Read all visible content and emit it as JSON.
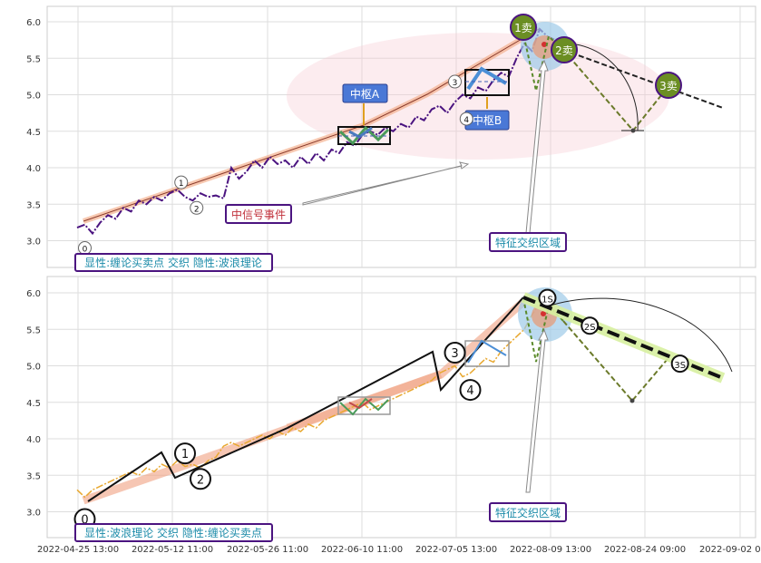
{
  "chart_data": [
    {
      "type": "line",
      "ylim": [
        2.6,
        6.2
      ],
      "y_ticks": [
        "6.0",
        "5.5",
        "5.0",
        "4.5",
        "4.0",
        "3.5",
        "3.0"
      ],
      "grid": true,
      "series": [
        {
          "values": [
            [
              0,
              3.18
            ],
            [
              1,
              3.22
            ],
            [
              2,
              3.1
            ],
            [
              3,
              3.25
            ],
            [
              4,
              3.35
            ],
            [
              5,
              3.3
            ],
            [
              6,
              3.45
            ],
            [
              7,
              3.4
            ],
            [
              8,
              3.55
            ],
            [
              9,
              3.5
            ],
            [
              10,
              3.6
            ],
            [
              11,
              3.55
            ],
            [
              12,
              3.65
            ],
            [
              13,
              3.7
            ],
            [
              14,
              3.6
            ],
            [
              15,
              3.55
            ],
            [
              16,
              3.65
            ],
            [
              17,
              3.6
            ],
            [
              18,
              3.62
            ],
            [
              19,
              3.58
            ],
            [
              20,
              4.0
            ],
            [
              21,
              3.85
            ],
            [
              22,
              3.95
            ],
            [
              23,
              4.1
            ],
            [
              24,
              4.0
            ],
            [
              25,
              4.15
            ],
            [
              26,
              4.05
            ],
            [
              27,
              4.1
            ],
            [
              28,
              4.0
            ],
            [
              29,
              4.15
            ],
            [
              30,
              4.05
            ],
            [
              31,
              4.2
            ],
            [
              32,
              4.1
            ],
            [
              33,
              4.25
            ],
            [
              34,
              4.2
            ],
            [
              35,
              4.35
            ],
            [
              36,
              4.3
            ],
            [
              37,
              4.45
            ],
            [
              38,
              4.5
            ],
            [
              39,
              4.45
            ],
            [
              40,
              4.55
            ],
            [
              41,
              4.5
            ],
            [
              42,
              4.6
            ],
            [
              43,
              4.55
            ],
            [
              44,
              4.7
            ],
            [
              45,
              4.65
            ],
            [
              46,
              4.8
            ],
            [
              47,
              4.85
            ],
            [
              48,
              4.75
            ],
            [
              49,
              4.9
            ],
            [
              50,
              5.0
            ],
            [
              51,
              4.95
            ],
            [
              52,
              5.1
            ],
            [
              53,
              5.05
            ],
            [
              54,
              5.2
            ],
            [
              55,
              5.3
            ],
            [
              56,
              5.25
            ],
            [
              57,
              5.5
            ],
            [
              58,
              5.7
            ],
            [
              59,
              5.6
            ],
            [
              60,
              5.9
            ],
            [
              61,
              5.8
            ],
            [
              62,
              5.75
            ],
            [
              63,
              5.6
            ]
          ]
        },
        {
          "values": [
            [
              1,
              3.1
            ],
            [
              14,
              3.7
            ],
            [
              16,
              3.6
            ],
            [
              49,
              5.0
            ],
            [
              51,
              4.8
            ],
            [
              61,
              5.95
            ]
          ]
        }
      ],
      "zhongshu": [
        {
          "label": "中枢A",
          "x": [
            37,
            45
          ],
          "y": [
            4.35,
            4.52
          ]
        },
        {
          "label": "中枢B",
          "x": [
            54,
            61
          ],
          "y": [
            5.0,
            5.3
          ]
        }
      ],
      "wave_points": [
        {
          "label": "0",
          "x": 1,
          "y": 2.9
        },
        {
          "label": "1",
          "x": 13.5,
          "y": 3.8
        },
        {
          "label": "2",
          "x": 15.5,
          "y": 3.45
        },
        {
          "label": "3",
          "x": 49,
          "y": 5.18
        },
        {
          "label": "4",
          "x": 50.5,
          "y": 4.67
        }
      ],
      "sell_points": [
        {
          "label": "1卖",
          "x": 60.5,
          "y": 5.92
        },
        {
          "label": "2卖",
          "x": 64.8,
          "y": 5.62
        },
        {
          "label": "3卖",
          "x": 77.5,
          "y": 5.12
        }
      ],
      "annotations": [
        {
          "text": "中信号事件",
          "x": 28,
          "y": 3.35
        },
        {
          "text": "特征交织区域",
          "x": 61,
          "y": 3.0
        },
        {
          "text": "显性:缠论买卖点 交织 隐性:波浪理论",
          "x": 4,
          "y": 2.65
        }
      ]
    },
    {
      "type": "line",
      "ylim": [
        2.6,
        6.2
      ],
      "y_ticks": [
        "6.0",
        "5.5",
        "5.0",
        "4.5",
        "4.0",
        "3.5",
        "3.0"
      ],
      "x_tick_labels": [
        "2022-04-25 13:00",
        "2022-05-12 11:00",
        "2022-05-26 11:00",
        "2022-06-10 11:00",
        "2022-07-05 13:00",
        "2022-08-09 13:00",
        "2022-08-24 09:00",
        "2022-09-02 09:00"
      ],
      "grid": true,
      "series": [
        {
          "values": [
            [
              0,
              3.3
            ],
            [
              1,
              3.2
            ],
            [
              2,
              3.3
            ],
            [
              3,
              3.35
            ],
            [
              4,
              3.4
            ],
            [
              5,
              3.45
            ],
            [
              6,
              3.5
            ],
            [
              7,
              3.55
            ],
            [
              8,
              3.5
            ],
            [
              9,
              3.6
            ],
            [
              10,
              3.55
            ],
            [
              11,
              3.65
            ],
            [
              12,
              3.6
            ],
            [
              13,
              3.7
            ],
            [
              14,
              3.62
            ],
            [
              15,
              3.65
            ],
            [
              16,
              3.6
            ],
            [
              17,
              3.7
            ],
            [
              18,
              3.75
            ],
            [
              19,
              3.9
            ],
            [
              20,
              3.95
            ],
            [
              21,
              3.9
            ],
            [
              22,
              3.95
            ],
            [
              23,
              4.0
            ],
            [
              24,
              4.05
            ],
            [
              25,
              4.0
            ],
            [
              26,
              4.1
            ],
            [
              27,
              4.05
            ],
            [
              28,
              4.15
            ],
            [
              29,
              4.1
            ],
            [
              30,
              4.2
            ],
            [
              31,
              4.15
            ],
            [
              32,
              4.25
            ],
            [
              33,
              4.3
            ],
            [
              34,
              4.35
            ],
            [
              35,
              4.4
            ],
            [
              36,
              4.45
            ],
            [
              37,
              4.5
            ],
            [
              38,
              4.4
            ],
            [
              39,
              4.45
            ],
            [
              40,
              4.5
            ],
            [
              41,
              4.55
            ],
            [
              42,
              4.6
            ],
            [
              43,
              4.65
            ],
            [
              44,
              4.7
            ],
            [
              45,
              4.75
            ],
            [
              46,
              4.8
            ],
            [
              47,
              4.9
            ],
            [
              48,
              4.95
            ],
            [
              49,
              5.0
            ],
            [
              50,
              4.85
            ],
            [
              51,
              4.9
            ],
            [
              52,
              5.0
            ],
            [
              53,
              5.1
            ],
            [
              54,
              5.05
            ],
            [
              55,
              5.2
            ],
            [
              56,
              5.3
            ],
            [
              57,
              5.4
            ],
            [
              58,
              5.5
            ],
            [
              59,
              5.7
            ],
            [
              60,
              5.85
            ],
            [
              61,
              5.95
            ]
          ]
        },
        {
          "values": [
            [
              1,
              3.1
            ],
            [
              14,
              3.7
            ],
            [
              16,
              3.55
            ],
            [
              49,
              5.0
            ],
            [
              51,
              4.8
            ],
            [
              61,
              5.95
            ]
          ]
        },
        {
          "values": [
            [
              61,
              5.92
            ],
            [
              67,
              5.5
            ],
            [
              77,
              5.03
            ],
            [
              85,
              4.78
            ]
          ]
        }
      ],
      "wave_points": [
        {
          "label": "0",
          "x": 1,
          "y": 2.9
        },
        {
          "label": "1",
          "x": 14,
          "y": 3.8
        },
        {
          "label": "2",
          "x": 16,
          "y": 3.45
        },
        {
          "label": "3",
          "x": 49,
          "y": 5.18
        },
        {
          "label": "4",
          "x": 51,
          "y": 4.67
        },
        {
          "label": "1S",
          "x": 61,
          "y": 5.93
        },
        {
          "label": "2S",
          "x": 66.5,
          "y": 5.55
        },
        {
          "label": "3S",
          "x": 78.2,
          "y": 5.03
        }
      ],
      "annotations": [
        {
          "text": "特征交织区域",
          "x": 61,
          "y": 2.95
        },
        {
          "text": "显性:波浪理论 交织 隐性:缠论买卖点",
          "x": 4,
          "y": 2.65
        }
      ]
    }
  ]
}
